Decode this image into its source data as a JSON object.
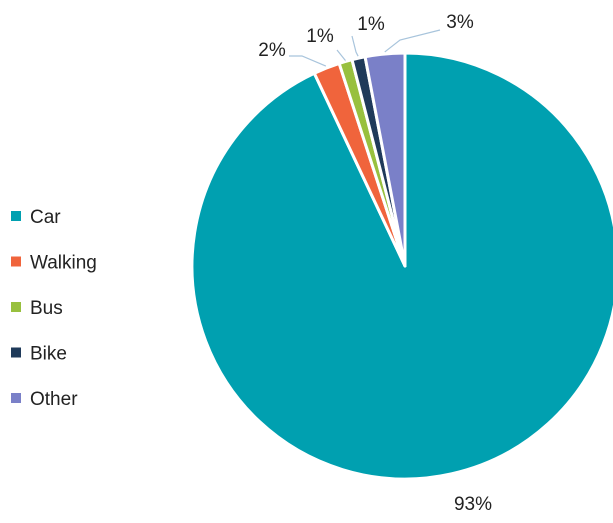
{
  "chart_data": {
    "type": "pie",
    "title": "",
    "categories": [
      "Car",
      "Walking",
      "Bus",
      "Bike",
      "Other"
    ],
    "values": [
      93,
      2,
      1,
      1,
      3
    ],
    "data_labels": [
      "93%",
      "2%",
      "1%",
      "1%",
      "3%"
    ],
    "colors": [
      "#00a0b0",
      "#f0643c",
      "#98c03e",
      "#1f3a5a",
      "#7a80c8"
    ],
    "legend_position": "left",
    "slice_order": "clockwise-from-top, largest-first",
    "grid": false
  }
}
